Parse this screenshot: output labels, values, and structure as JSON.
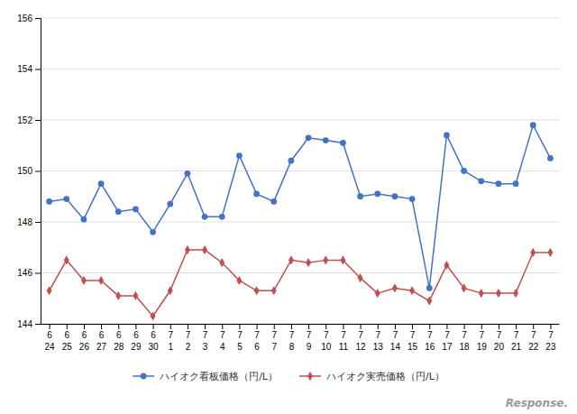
{
  "chart_data": {
    "type": "line",
    "categories": [
      [
        "6",
        "24"
      ],
      [
        "6",
        "25"
      ],
      [
        "6",
        "26"
      ],
      [
        "6",
        "27"
      ],
      [
        "6",
        "28"
      ],
      [
        "6",
        "29"
      ],
      [
        "6",
        "30"
      ],
      [
        "7",
        "1"
      ],
      [
        "7",
        "2"
      ],
      [
        "7",
        "3"
      ],
      [
        "7",
        "4"
      ],
      [
        "7",
        "5"
      ],
      [
        "7",
        "6"
      ],
      [
        "7",
        "7"
      ],
      [
        "7",
        "8"
      ],
      [
        "7",
        "9"
      ],
      [
        "7",
        "10"
      ],
      [
        "7",
        "11"
      ],
      [
        "7",
        "12"
      ],
      [
        "7",
        "13"
      ],
      [
        "7",
        "14"
      ],
      [
        "7",
        "15"
      ],
      [
        "7",
        "16"
      ],
      [
        "7",
        "17"
      ],
      [
        "7",
        "18"
      ],
      [
        "7",
        "19"
      ],
      [
        "7",
        "20"
      ],
      [
        "7",
        "21"
      ],
      [
        "7",
        "22"
      ],
      [
        "7",
        "23"
      ]
    ],
    "series": [
      {
        "name": "ハイオク看板価格（円/L）",
        "color": "#4472c4",
        "marker": "circle",
        "values": [
          148.8,
          148.9,
          148.1,
          149.5,
          148.4,
          148.5,
          147.6,
          148.7,
          149.9,
          148.2,
          148.2,
          150.6,
          149.1,
          148.8,
          150.4,
          151.3,
          151.2,
          151.1,
          149.0,
          149.1,
          149.0,
          148.9,
          145.4,
          151.4,
          150.0,
          149.6,
          149.5,
          149.5,
          151.8,
          150.5
        ]
      },
      {
        "name": "ハイオク実売価格（円/L）",
        "color": "#c0504d",
        "marker": "diamond",
        "values": [
          145.3,
          146.5,
          145.7,
          145.7,
          145.1,
          145.1,
          144.3,
          145.3,
          146.9,
          146.9,
          146.4,
          145.7,
          145.3,
          145.3,
          146.5,
          146.4,
          146.5,
          146.5,
          145.8,
          145.2,
          145.4,
          145.3,
          144.9,
          146.3,
          145.4,
          145.2,
          145.2,
          145.2,
          146.8,
          146.8
        ]
      }
    ],
    "ylim": [
      144,
      156
    ],
    "yticks": [
      144,
      146,
      148,
      150,
      152,
      154,
      156
    ],
    "grid": true,
    "legend": "bottom",
    "annotations": [
      "Response."
    ]
  }
}
